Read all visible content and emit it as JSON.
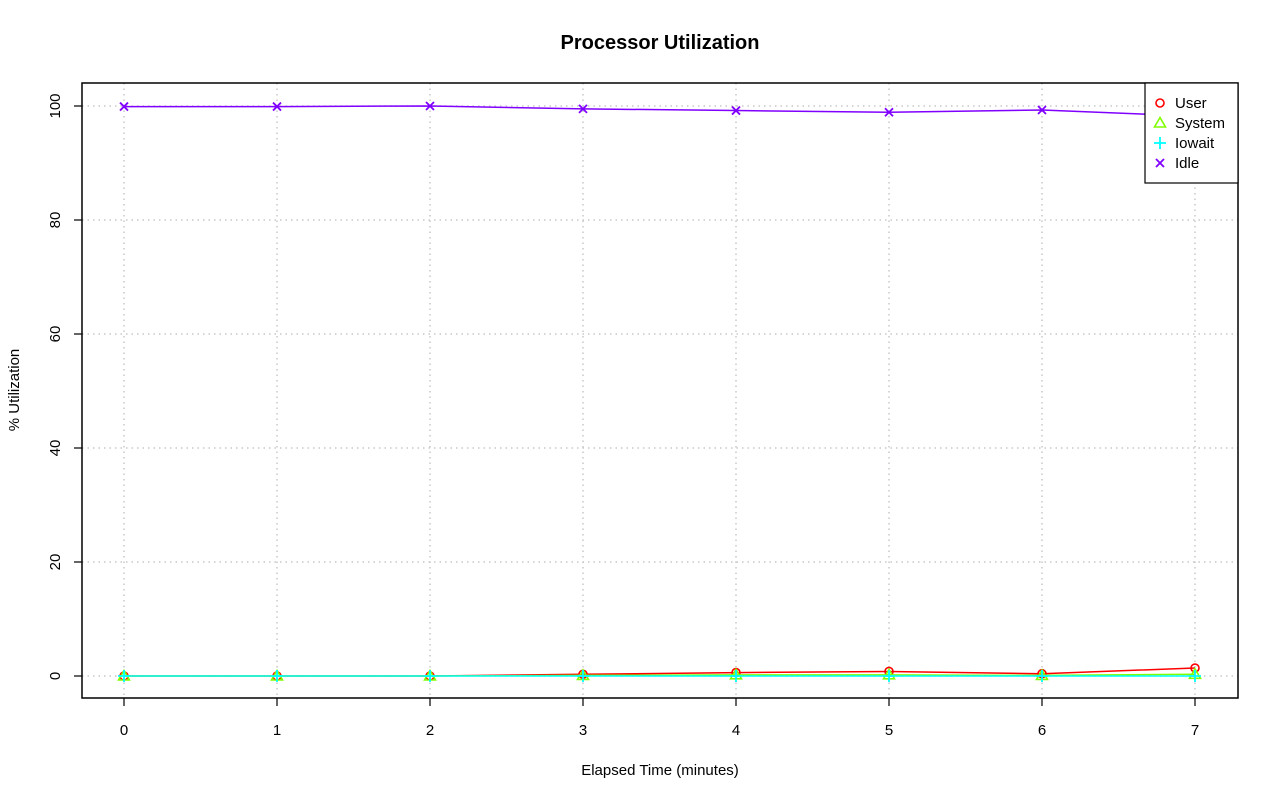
{
  "chart_data": {
    "type": "line",
    "title": "Processor Utilization",
    "xlabel": "Elapsed Time (minutes)",
    "ylabel": "% Utilization",
    "x": [
      0,
      1,
      2,
      3,
      4,
      5,
      6,
      7
    ],
    "xlim": [
      0,
      7
    ],
    "ylim": [
      0,
      100
    ],
    "x_ticks": [
      "0",
      "1",
      "2",
      "3",
      "4",
      "5",
      "6",
      "7"
    ],
    "y_ticks": [
      "0",
      "20",
      "40",
      "60",
      "80",
      "100"
    ],
    "grid": true,
    "legend_position": "top-right",
    "series": [
      {
        "name": "User",
        "color": "#ff0000",
        "marker": "circle",
        "values": [
          0.0,
          0.0,
          0.0,
          0.3,
          0.6,
          0.8,
          0.4,
          1.4
        ]
      },
      {
        "name": "System",
        "color": "#80ff00",
        "marker": "triangle",
        "values": [
          0.0,
          0.0,
          0.0,
          0.1,
          0.2,
          0.2,
          0.1,
          0.3
        ]
      },
      {
        "name": "Iowait",
        "color": "#00ffff",
        "marker": "plus",
        "values": [
          0.0,
          0.0,
          0.0,
          0.0,
          0.0,
          0.0,
          0.0,
          0.0
        ]
      },
      {
        "name": "Idle",
        "color": "#8000ff",
        "marker": "cross",
        "values": [
          99.9,
          99.9,
          100.0,
          99.5,
          99.2,
          98.9,
          99.3,
          98.2
        ]
      }
    ]
  }
}
